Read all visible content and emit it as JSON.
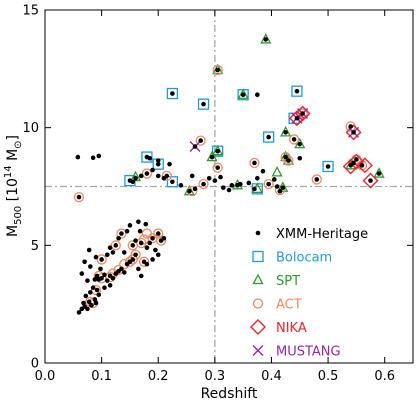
{
  "chart_data": {
    "type": "scatter",
    "title": "",
    "xlabel": "Redshift",
    "ylabel_main": "M",
    "ylabel_sub": "500",
    "ylabel_rest": " [10",
    "ylabel_sup": "14",
    "ylabel_end": " M",
    "ylabel_sun": "⊙",
    "ylabel_close": "]",
    "xlim": [
      0.0,
      0.65
    ],
    "ylim": [
      0,
      15
    ],
    "x_ticks": [
      0.0,
      0.1,
      0.2,
      0.3,
      0.4,
      0.5,
      0.6
    ],
    "x_tick_labels": [
      "0.0",
      "0.1",
      "0.2",
      "0.3",
      "0.4",
      "0.5",
      "0.6"
    ],
    "y_ticks": [
      0,
      5,
      10,
      15
    ],
    "y_tick_labels": [
      "0",
      "5",
      "10",
      "15"
    ],
    "ref_line_x": 0.3,
    "ref_line_y": 7.5,
    "legend_position": "lower-right",
    "colors": {
      "xmm": "#000000",
      "bolocam": "#1f9ad6",
      "spt": "#2e9a2e",
      "act": "#f08a62",
      "nika": "#e8262b",
      "mustang": "#8e2a9e",
      "refline": "#a8a8a8"
    },
    "series": [
      {
        "name": "XMM-Heritage",
        "marker": "dot",
        "color": "#000000",
        "points": [
          [
            0.058,
            8.75
          ],
          [
            0.085,
            8.72
          ],
          [
            0.095,
            8.8
          ],
          [
            0.06,
            2.15
          ],
          [
            0.065,
            2.3
          ],
          [
            0.07,
            2.4
          ],
          [
            0.068,
            2.55
          ],
          [
            0.075,
            2.3
          ],
          [
            0.078,
            2.6
          ],
          [
            0.082,
            2.45
          ],
          [
            0.088,
            2.7
          ],
          [
            0.09,
            2.55
          ],
          [
            0.095,
            2.9
          ],
          [
            0.072,
            2.85
          ],
          [
            0.08,
            3.0
          ],
          [
            0.085,
            3.2
          ],
          [
            0.088,
            3.55
          ],
          [
            0.092,
            3.7
          ],
          [
            0.095,
            3.55
          ],
          [
            0.1,
            3.6
          ],
          [
            0.105,
            3.75
          ],
          [
            0.11,
            3.5
          ],
          [
            0.115,
            3.7
          ],
          [
            0.12,
            3.6
          ],
          [
            0.125,
            3.8
          ],
          [
            0.13,
            3.9
          ],
          [
            0.135,
            4.0
          ],
          [
            0.14,
            3.85
          ],
          [
            0.145,
            4.2
          ],
          [
            0.15,
            4.3
          ],
          [
            0.155,
            4.4
          ],
          [
            0.16,
            4.6
          ],
          [
            0.165,
            4.0
          ],
          [
            0.17,
            3.7
          ],
          [
            0.175,
            4.3
          ],
          [
            0.18,
            4.9
          ],
          [
            0.185,
            5.1
          ],
          [
            0.19,
            5.3
          ],
          [
            0.195,
            4.8
          ],
          [
            0.2,
            5.5
          ],
          [
            0.205,
            5.2
          ],
          [
            0.21,
            5.3
          ],
          [
            0.178,
            5.9
          ],
          [
            0.168,
            5.6
          ],
          [
            0.16,
            5.2
          ],
          [
            0.155,
            5.0
          ],
          [
            0.145,
            5.6
          ],
          [
            0.15,
            5.85
          ],
          [
            0.165,
            6.0
          ],
          [
            0.135,
            5.5
          ],
          [
            0.13,
            5.3
          ],
          [
            0.125,
            5.0
          ],
          [
            0.12,
            4.7
          ],
          [
            0.115,
            4.9
          ],
          [
            0.11,
            4.6
          ],
          [
            0.1,
            4.4
          ],
          [
            0.098,
            4.0
          ],
          [
            0.105,
            3.2
          ],
          [
            0.115,
            3.3
          ],
          [
            0.092,
            3.1
          ],
          [
            0.075,
            3.5
          ],
          [
            0.08,
            4.1
          ],
          [
            0.09,
            4.5
          ],
          [
            0.14,
            4.7
          ],
          [
            0.19,
            4.4
          ],
          [
            0.18,
            4.2
          ],
          [
            0.2,
            4.6
          ],
          [
            0.17,
            5.1
          ],
          [
            0.06,
            7.05
          ],
          [
            0.065,
            3.8
          ],
          [
            0.07,
            4.3
          ],
          [
            0.078,
            4.8
          ],
          [
            0.155,
            7.7
          ],
          [
            0.16,
            7.85
          ],
          [
            0.17,
            7.95
          ],
          [
            0.18,
            8.05
          ],
          [
            0.19,
            8.2
          ],
          [
            0.2,
            7.95
          ],
          [
            0.21,
            7.85
          ],
          [
            0.22,
            8.45
          ],
          [
            0.215,
            7.95
          ],
          [
            0.185,
            8.7
          ],
          [
            0.2,
            8.6
          ],
          [
            0.225,
            7.7
          ],
          [
            0.24,
            7.55
          ],
          [
            0.255,
            7.3
          ],
          [
            0.26,
            7.95
          ],
          [
            0.265,
            7.4
          ],
          [
            0.28,
            7.6
          ],
          [
            0.29,
            7.85
          ],
          [
            0.3,
            7.75
          ],
          [
            0.305,
            8.3
          ],
          [
            0.31,
            7.9
          ],
          [
            0.315,
            7.45
          ],
          [
            0.325,
            7.35
          ],
          [
            0.33,
            7.55
          ],
          [
            0.345,
            7.6
          ],
          [
            0.36,
            7.65
          ],
          [
            0.37,
            7.4
          ],
          [
            0.375,
            7.85
          ],
          [
            0.385,
            8.15
          ],
          [
            0.395,
            7.6
          ],
          [
            0.405,
            7.8
          ],
          [
            0.41,
            7.5
          ],
          [
            0.415,
            7.3
          ],
          [
            0.425,
            8.75
          ],
          [
            0.43,
            8.6
          ],
          [
            0.44,
            9.5
          ],
          [
            0.45,
            9.3
          ],
          [
            0.48,
            7.8
          ],
          [
            0.5,
            8.35
          ],
          [
            0.54,
            8.4
          ],
          [
            0.545,
            8.5
          ],
          [
            0.55,
            8.65
          ],
          [
            0.56,
            8.4
          ],
          [
            0.575,
            7.75
          ],
          [
            0.59,
            8.05
          ],
          [
            0.375,
            11.4
          ],
          [
            0.305,
            12.45
          ],
          [
            0.35,
            11.4
          ],
          [
            0.39,
            13.75
          ],
          [
            0.445,
            11.55
          ],
          [
            0.425,
            9.8
          ],
          [
            0.445,
            10.4
          ],
          [
            0.455,
            10.6
          ],
          [
            0.54,
            10.05
          ],
          [
            0.545,
            9.8
          ],
          [
            0.395,
            9.6
          ],
          [
            0.305,
            9.0
          ],
          [
            0.275,
            9.45
          ],
          [
            0.295,
            8.75
          ],
          [
            0.265,
            9.2
          ],
          [
            0.225,
            11.45
          ],
          [
            0.28,
            11.0
          ],
          [
            0.15,
            7.75
          ],
          [
            0.18,
            8.75
          ],
          [
            0.2,
            8.45
          ],
          [
            0.34,
            7.55
          ],
          [
            0.37,
            8.5
          ],
          [
            0.42,
            7.45
          ],
          [
            0.45,
            8.7
          ]
        ]
      },
      {
        "name": "Bolocam",
        "marker": "square",
        "color": "#1f9ad6",
        "points": [
          [
            0.225,
            11.45
          ],
          [
            0.28,
            11.0
          ],
          [
            0.35,
            11.4
          ],
          [
            0.445,
            11.55
          ],
          [
            0.395,
            9.6
          ],
          [
            0.305,
            9.0
          ],
          [
            0.5,
            8.35
          ],
          [
            0.18,
            8.75
          ],
          [
            0.2,
            8.45
          ],
          [
            0.15,
            7.75
          ],
          [
            0.225,
            7.7
          ],
          [
            0.375,
            7.4
          ],
          [
            0.44,
            10.4
          ]
        ]
      },
      {
        "name": "SPT",
        "marker": "triangle",
        "color": "#2e9a2e",
        "points": [
          [
            0.39,
            13.75
          ],
          [
            0.305,
            12.45
          ],
          [
            0.35,
            11.4
          ],
          [
            0.425,
            9.8
          ],
          [
            0.295,
            8.75
          ],
          [
            0.305,
            9.0
          ],
          [
            0.425,
            8.75
          ],
          [
            0.43,
            8.6
          ],
          [
            0.45,
            9.3
          ],
          [
            0.54,
            8.4
          ],
          [
            0.59,
            8.05
          ],
          [
            0.41,
            8.1
          ],
          [
            0.34,
            7.55
          ],
          [
            0.16,
            7.9
          ],
          [
            0.255,
            7.3
          ],
          [
            0.375,
            7.4
          ],
          [
            0.42,
            7.45
          ]
        ]
      },
      {
        "name": "ACT",
        "marker": "circle",
        "color": "#f08a62",
        "points": [
          [
            0.06,
            7.05
          ],
          [
            0.08,
            2.6
          ],
          [
            0.085,
            2.55
          ],
          [
            0.09,
            3.1
          ],
          [
            0.095,
            3.7
          ],
          [
            0.1,
            3.6
          ],
          [
            0.115,
            3.65
          ],
          [
            0.12,
            3.8
          ],
          [
            0.13,
            3.95
          ],
          [
            0.14,
            4.2
          ],
          [
            0.15,
            4.3
          ],
          [
            0.155,
            4.4
          ],
          [
            0.16,
            4.6
          ],
          [
            0.175,
            4.3
          ],
          [
            0.17,
            5.1
          ],
          [
            0.175,
            5.25
          ],
          [
            0.18,
            5.5
          ],
          [
            0.19,
            5.3
          ],
          [
            0.2,
            5.5
          ],
          [
            0.205,
            5.2
          ],
          [
            0.155,
            5.0
          ],
          [
            0.135,
            5.5
          ],
          [
            0.125,
            5.0
          ],
          [
            0.1,
            4.4
          ],
          [
            0.275,
            9.45
          ],
          [
            0.305,
            12.45
          ],
          [
            0.37,
            8.5
          ],
          [
            0.425,
            8.75
          ],
          [
            0.43,
            8.6
          ],
          [
            0.44,
            9.5
          ],
          [
            0.455,
            10.6
          ],
          [
            0.48,
            7.8
          ],
          [
            0.54,
            10.05
          ],
          [
            0.55,
            8.65
          ],
          [
            0.395,
            7.6
          ],
          [
            0.28,
            7.6
          ],
          [
            0.26,
            7.3
          ],
          [
            0.305,
            8.3
          ],
          [
            0.215,
            7.95
          ],
          [
            0.18,
            8.05
          ],
          [
            0.415,
            7.35
          ],
          [
            0.56,
            8.4
          ]
        ]
      },
      {
        "name": "NIKA",
        "marker": "diamond",
        "color": "#e8262b",
        "points": [
          [
            0.445,
            10.4
          ],
          [
            0.455,
            10.6
          ],
          [
            0.545,
            9.8
          ],
          [
            0.54,
            8.35
          ],
          [
            0.55,
            8.55
          ],
          [
            0.565,
            8.4
          ],
          [
            0.575,
            7.75
          ]
        ]
      },
      {
        "name": "MUSTANG",
        "marker": "cross",
        "color": "#8e2a9e",
        "points": [
          [
            0.265,
            9.2
          ],
          [
            0.445,
            10.4
          ],
          [
            0.455,
            10.6
          ],
          [
            0.545,
            9.8
          ]
        ]
      }
    ]
  }
}
